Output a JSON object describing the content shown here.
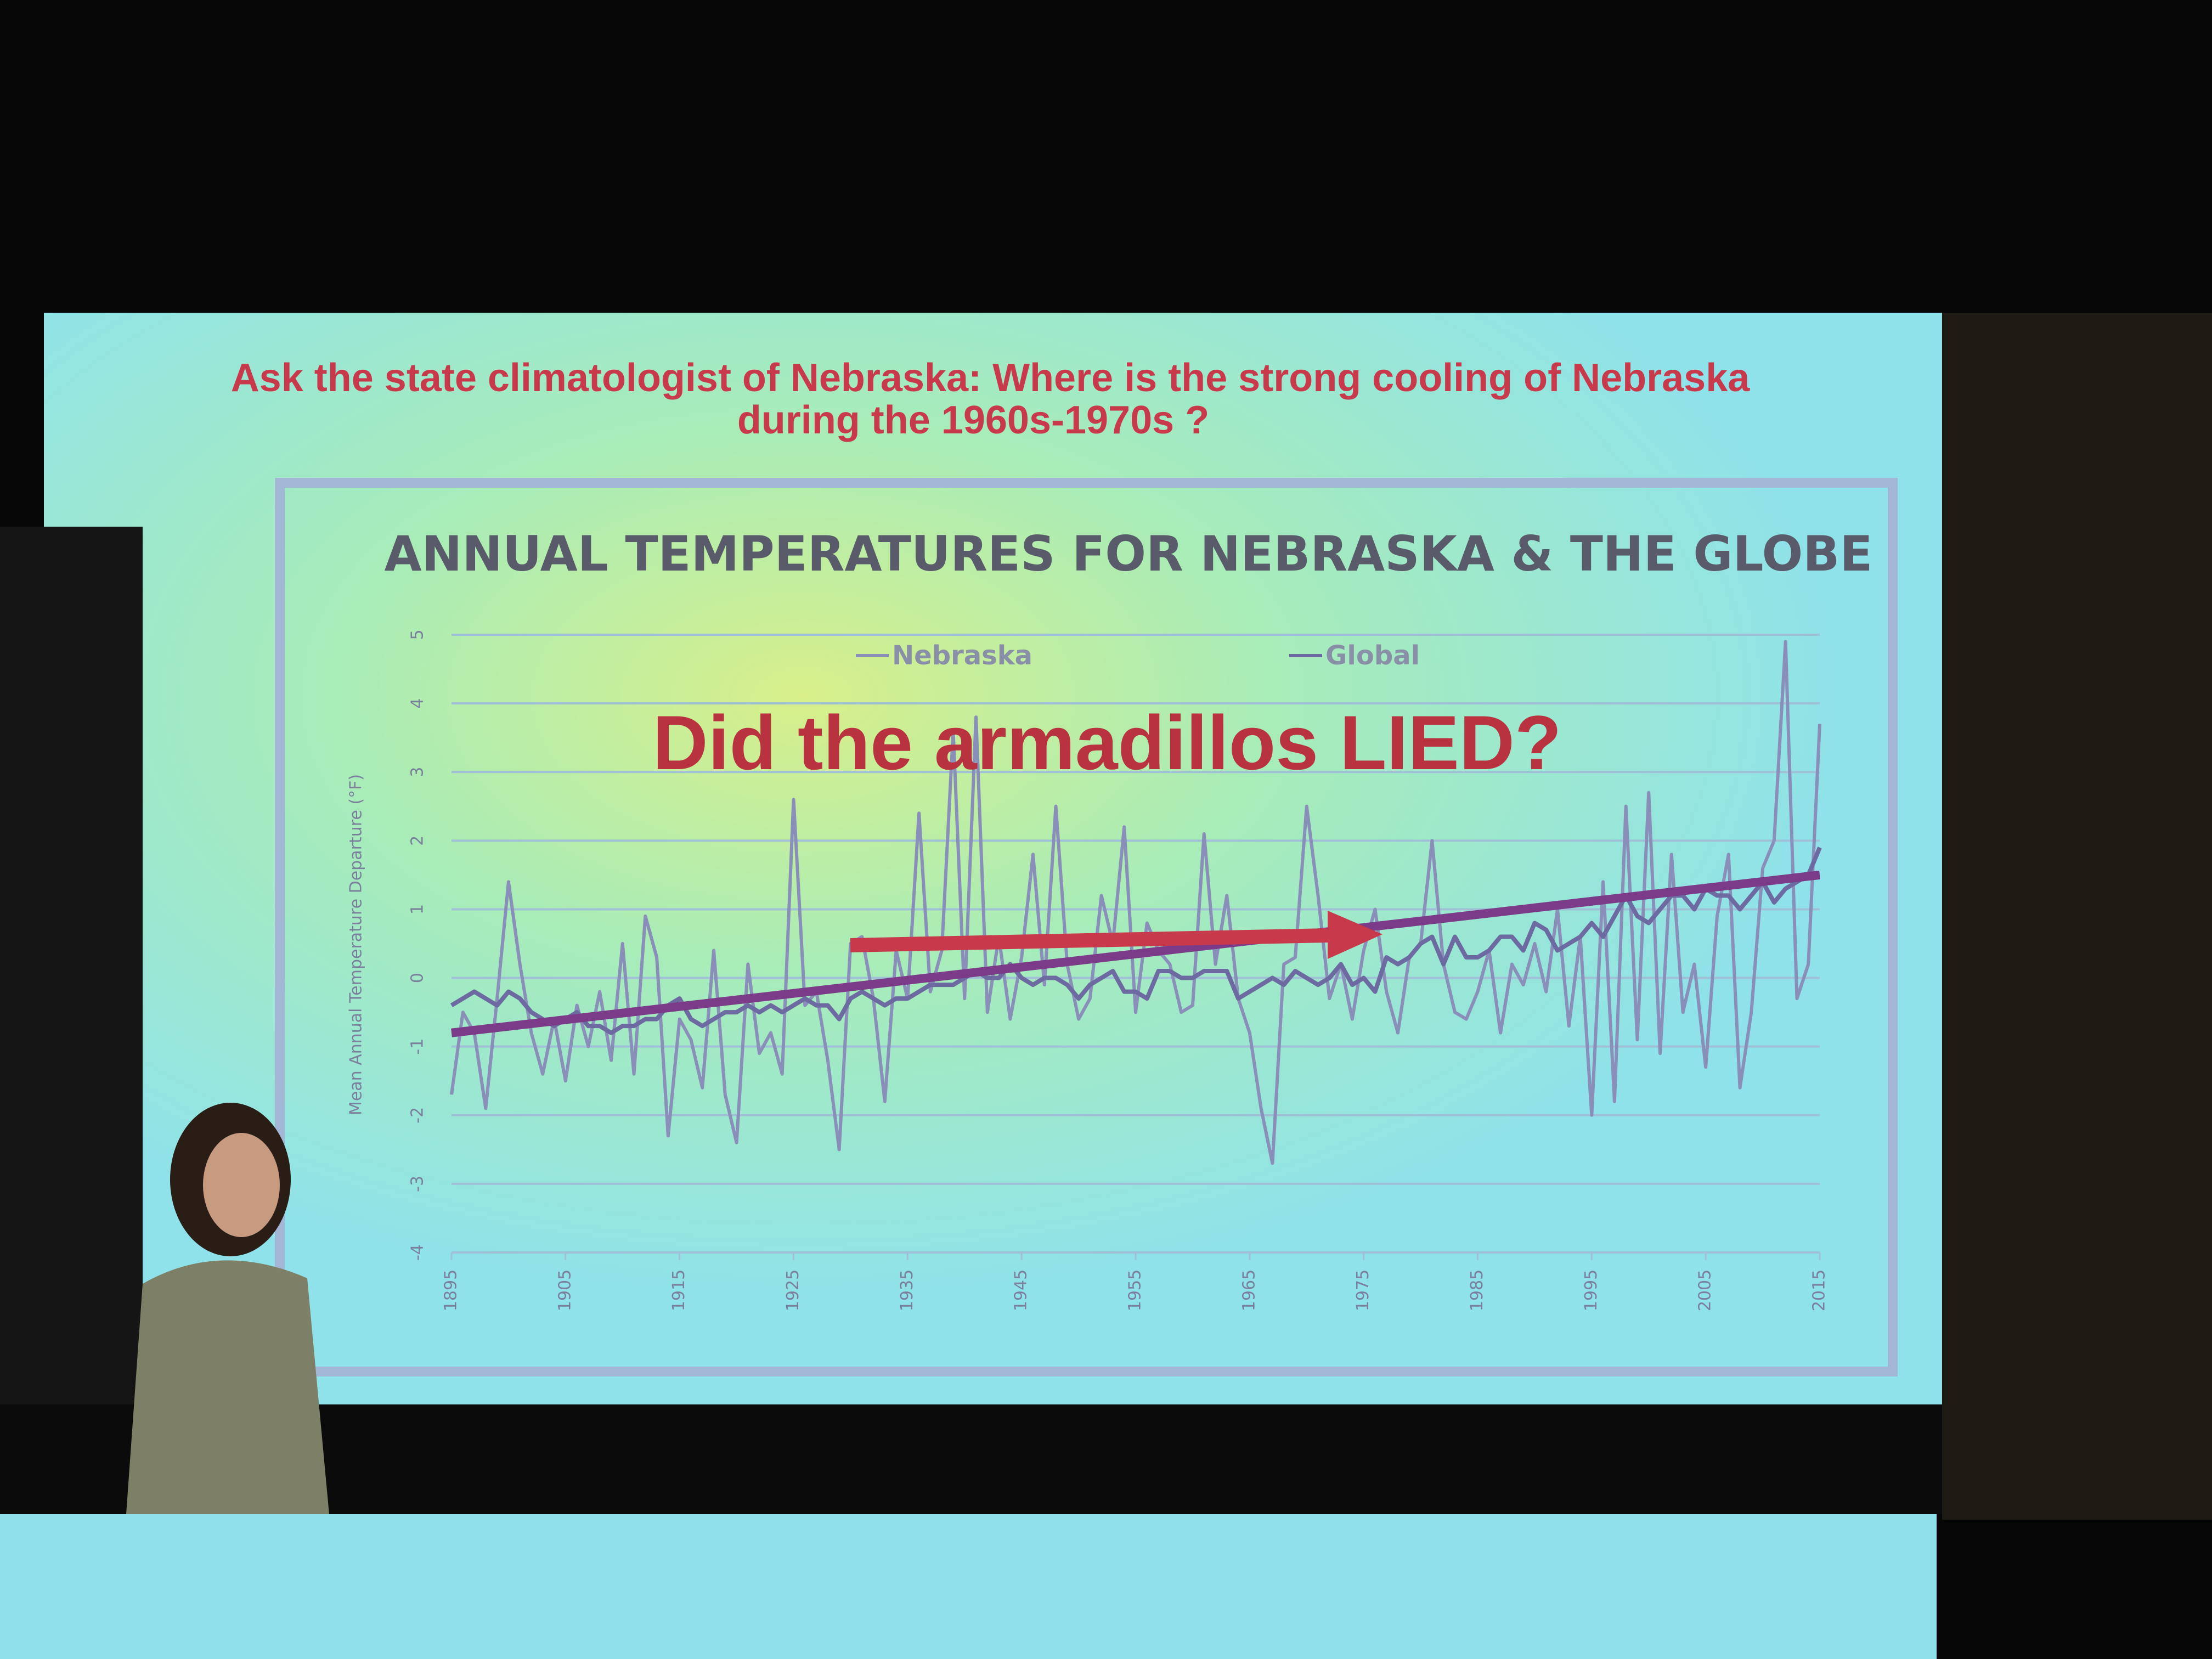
{
  "slide_title": [
    "Ask the state climatologist of Nebraska: Where is the strong cooling of Nebraska",
    "during the 1960s-1970s ?"
  ],
  "chart_data": {
    "type": "line",
    "title": "ANNUAL TEMPERATURES FOR NEBRASKA & THE GLOBE",
    "ylabel": "Mean Annual Temperature Departure (°F)",
    "annotation": "Did the armadillos LIED?",
    "x": [
      1895,
      1896,
      1897,
      1898,
      1899,
      1900,
      1901,
      1902,
      1903,
      1904,
      1905,
      1906,
      1907,
      1908,
      1909,
      1910,
      1911,
      1912,
      1913,
      1914,
      1915,
      1916,
      1917,
      1918,
      1919,
      1920,
      1921,
      1922,
      1923,
      1924,
      1925,
      1926,
      1927,
      1928,
      1929,
      1930,
      1931,
      1932,
      1933,
      1934,
      1935,
      1936,
      1937,
      1938,
      1939,
      1940,
      1941,
      1942,
      1943,
      1944,
      1945,
      1946,
      1947,
      1948,
      1949,
      1950,
      1951,
      1952,
      1953,
      1954,
      1955,
      1956,
      1957,
      1958,
      1959,
      1960,
      1961,
      1962,
      1963,
      1964,
      1965,
      1966,
      1967,
      1968,
      1969,
      1970,
      1971,
      1972,
      1973,
      1974,
      1975,
      1976,
      1977,
      1978,
      1979,
      1980,
      1981,
      1982,
      1983,
      1984,
      1985,
      1986,
      1987,
      1988,
      1989,
      1990,
      1991,
      1992,
      1993,
      1994,
      1995,
      1996,
      1997,
      1998,
      1999,
      2000,
      2001,
      2002,
      2003,
      2004,
      2005,
      2006,
      2007,
      2008,
      2009,
      2010,
      2011,
      2012,
      2013,
      2014,
      2015
    ],
    "series": [
      {
        "name": "Nebraska",
        "color": "#8a8fba",
        "values": [
          -1.7,
          -0.5,
          -0.8,
          -1.9,
          -0.3,
          1.4,
          0.2,
          -0.8,
          -1.4,
          -0.6,
          -1.5,
          -0.4,
          -1.0,
          -0.2,
          -1.2,
          0.5,
          -1.4,
          0.9,
          0.3,
          -2.3,
          -0.6,
          -0.9,
          -1.6,
          0.4,
          -1.7,
          -2.4,
          0.2,
          -1.1,
          -0.8,
          -1.4,
          2.6,
          -0.4,
          -0.2,
          -1.2,
          -2.5,
          0.5,
          0.6,
          -0.3,
          -1.8,
          0.4,
          -0.3,
          2.4,
          -0.2,
          0.4,
          3.6,
          -0.3,
          3.8,
          -0.5,
          0.6,
          -0.6,
          0.3,
          1.8,
          -0.1,
          2.5,
          0.2,
          -0.6,
          -0.3,
          1.2,
          0.5,
          2.2,
          -0.5,
          0.8,
          0.4,
          0.2,
          -0.5,
          -0.4,
          2.1,
          0.2,
          1.2,
          -0.3,
          -0.8,
          -1.9,
          -2.7,
          0.2,
          0.3,
          2.5,
          1.2,
          -0.3,
          0.2,
          -0.6,
          0.4,
          1.0,
          -0.2,
          -0.8,
          0.3,
          0.5,
          2.0,
          0.2,
          -0.5,
          -0.6,
          -0.2,
          0.4,
          -0.8,
          0.2,
          -0.1,
          0.5,
          -0.2,
          1.0,
          -0.7,
          0.6,
          -2.0,
          1.4,
          -1.8,
          2.5,
          -0.9,
          2.7,
          -1.1,
          1.8,
          -0.5,
          0.2,
          -1.3,
          0.9,
          1.8,
          -1.6,
          -0.5,
          1.6,
          2.0,
          4.9,
          -0.3,
          0.2,
          3.7
        ]
      },
      {
        "name": "Global",
        "color": "#6c6aa0",
        "values": [
          -0.4,
          -0.3,
          -0.2,
          -0.3,
          -0.4,
          -0.2,
          -0.3,
          -0.5,
          -0.6,
          -0.7,
          -0.6,
          -0.5,
          -0.7,
          -0.7,
          -0.8,
          -0.7,
          -0.7,
          -0.6,
          -0.6,
          -0.4,
          -0.3,
          -0.6,
          -0.7,
          -0.6,
          -0.5,
          -0.5,
          -0.4,
          -0.5,
          -0.4,
          -0.5,
          -0.4,
          -0.3,
          -0.4,
          -0.4,
          -0.6,
          -0.3,
          -0.2,
          -0.3,
          -0.4,
          -0.3,
          -0.3,
          -0.2,
          -0.1,
          -0.1,
          -0.1,
          0.0,
          0.1,
          0.0,
          0.0,
          0.2,
          0.0,
          -0.1,
          0.0,
          0.0,
          -0.1,
          -0.3,
          -0.1,
          0.0,
          0.1,
          -0.2,
          -0.2,
          -0.3,
          0.1,
          0.1,
          0.0,
          0.0,
          0.1,
          0.1,
          0.1,
          -0.3,
          -0.2,
          -0.1,
          0.0,
          -0.1,
          0.1,
          0.0,
          -0.1,
          0.0,
          0.2,
          -0.1,
          0.0,
          -0.2,
          0.3,
          0.2,
          0.3,
          0.5,
          0.6,
          0.2,
          0.6,
          0.3,
          0.3,
          0.4,
          0.6,
          0.6,
          0.4,
          0.8,
          0.7,
          0.4,
          0.5,
          0.6,
          0.8,
          0.6,
          0.9,
          1.2,
          0.9,
          0.8,
          1.0,
          1.2,
          1.2,
          1.0,
          1.3,
          1.2,
          1.2,
          1.0,
          1.2,
          1.4,
          1.1,
          1.3,
          1.4,
          1.5,
          1.9
        ]
      }
    ],
    "trend_line": {
      "color": "#7b3b88",
      "x": [
        1895,
        2015
      ],
      "values": [
        -0.8,
        1.5
      ]
    },
    "xlim": [
      1895,
      2015
    ],
    "xticks": [
      1895,
      1905,
      1915,
      1925,
      1935,
      1945,
      1955,
      1965,
      1975,
      1985,
      1995,
      2005,
      2015
    ],
    "ylim": [
      -4,
      5
    ],
    "yticks": [
      -4,
      -3,
      -2,
      -1,
      0,
      1,
      2,
      3,
      4,
      5
    ],
    "grid": true
  }
}
